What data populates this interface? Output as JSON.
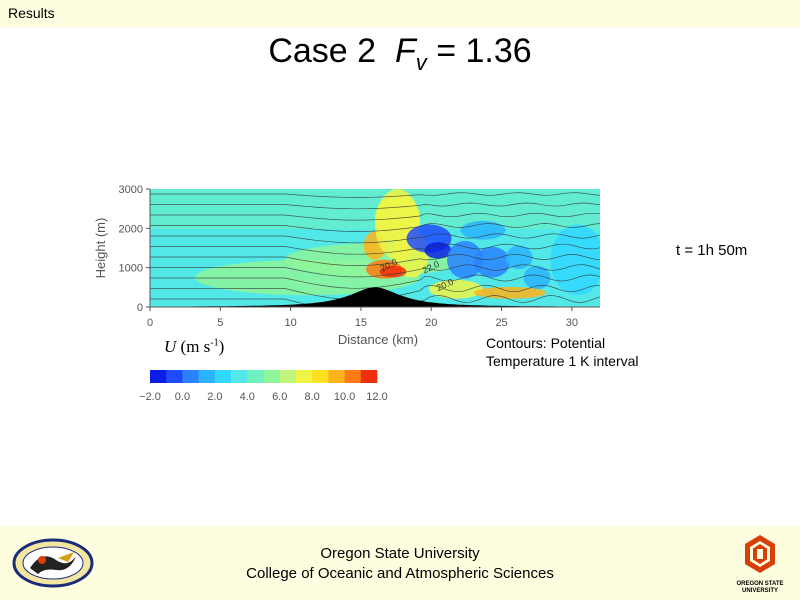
{
  "header": {
    "section": "Results"
  },
  "slide": {
    "title_case": "Case 2",
    "title_symbol": "F",
    "title_subscript": "v",
    "title_value": "= 1.36",
    "time_label": "t = 1h 50m",
    "contour_line1": "Contours: Potential",
    "contour_line2": "Temperature 1 K interval",
    "colorbar_label_symbol": "U",
    "colorbar_label_units": "(m s",
    "colorbar_label_exp": "-1",
    "colorbar_label_close": ")"
  },
  "footer": {
    "line1": "Oregon State University",
    "line2": "College of Oceanic and Atmospheric Sciences",
    "osu_logo_line1": "OREGON STATE",
    "osu_logo_line2": "UNIVERSITY"
  },
  "colors": {
    "accent_orange": "#d73f09",
    "footer_bg": "#fffde0",
    "terrain": "#000000",
    "contour_line": "#333333"
  },
  "chart_data": {
    "type": "heatmap",
    "xlabel": "Distance (km)",
    "ylabel": "Height (m)",
    "xlim": [
      0,
      32
    ],
    "ylim": [
      0,
      3000
    ],
    "x_ticks": [
      0,
      5,
      10,
      15,
      20,
      25,
      30
    ],
    "y_ticks": [
      0,
      1000,
      2000,
      3000
    ],
    "grid": false,
    "terrain_peak_km": 16,
    "terrain_height_m": 500,
    "contour_labels": [
      {
        "x": 16.5,
        "y": 900,
        "text": "20.0"
      },
      {
        "x": 19.5,
        "y": 850,
        "text": "22.0"
      },
      {
        "x": 20.5,
        "y": 400,
        "text": "20.0"
      }
    ],
    "colorbar": {
      "ticks": [
        -2.0,
        0.0,
        2.0,
        4.0,
        6.0,
        8.0,
        10.0,
        12.0
      ],
      "tick_labels": [
        "−2.0",
        "0.0",
        "2.0",
        "4.0",
        "6.0",
        "8.0",
        "10.0",
        "12.0"
      ],
      "colors": [
        "#0a1ee6",
        "#1e4bff",
        "#2a82ff",
        "#2ab4ff",
        "#31d7ff",
        "#52e8e8",
        "#6ff0c0",
        "#8ef59a",
        "#bff57a",
        "#eef545",
        "#ffe020",
        "#ffb31a",
        "#ff7a14",
        "#f0300c"
      ]
    }
  }
}
